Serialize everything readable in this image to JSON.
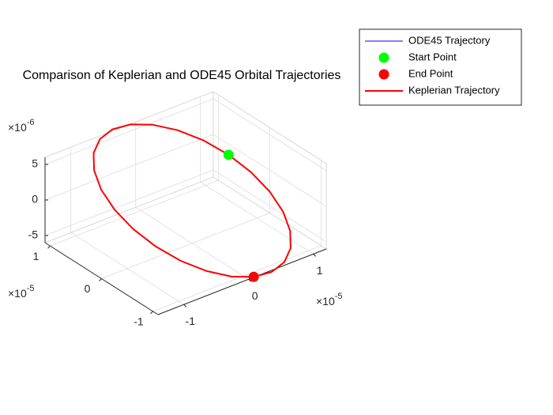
{
  "chart_data": {
    "type": "line3d",
    "title": "Comparison of Keplerian and ODE45 Orbital Trajectories",
    "xlim": [
      -1.4e-05,
      1.2e-05
    ],
    "ylim": [
      -1.1e-05,
      1.1e-05
    ],
    "zlim": [
      -6e-06,
      6e-06
    ],
    "xticks": [
      {
        "value": -1e-05,
        "label": "-1"
      },
      0,
      {
        "value": 1e-05,
        "label": "1"
      }
    ],
    "yticks": [
      {
        "value": -1e-05,
        "label": "-1"
      },
      0,
      {
        "value": 1e-05,
        "label": "1"
      }
    ],
    "zticks": [
      {
        "value": -5e-06,
        "label": "-5"
      },
      0,
      {
        "value": 5e-06,
        "label": "5"
      }
    ],
    "x_exponent_label": {
      "base": "×10",
      "power": "-5"
    },
    "y_exponent_label": {
      "base": "×10",
      "power": "-5"
    },
    "z_exponent_label": {
      "base": "×10",
      "power": "-6"
    },
    "grid": true,
    "legend_location": "northeast",
    "series": [
      {
        "name": "ODE45 Trajectory",
        "mode": "line",
        "color": "#0000ff",
        "line_width": 1,
        "x": [
          1.2e-05,
          1.159e-05,
          1.039e-05,
          8.49e-06,
          6e-06,
          3.11e-06,
          0,
          -3.11e-06,
          -6e-06,
          -8.49e-06,
          -1.039e-05,
          -1.159e-05,
          -1.2e-05,
          -1.159e-05,
          -1.039e-05,
          -8.49e-06,
          -6e-06,
          -3.11e-06,
          0,
          3.11e-06,
          6e-06,
          8.49e-06,
          1.039e-05,
          1.159e-05,
          1.2e-05
        ],
        "y": [
          0,
          3.11e-06,
          6e-06,
          8.49e-06,
          1.039e-05,
          1.159e-05,
          1.2e-05,
          1.159e-05,
          1.039e-05,
          8.49e-06,
          6e-06,
          3.11e-06,
          0,
          -3.11e-06,
          -6e-06,
          -8.49e-06,
          -1.039e-05,
          -1.159e-05,
          -1.2e-05,
          -1.159e-05,
          -1.039e-05,
          -8.49e-06,
          -6e-06,
          -3.11e-06,
          0
        ],
        "z": [
          -3e-06,
          -1.553e-06,
          0,
          1.553e-06,
          3e-06,
          4.243e-06,
          5.196e-06,
          5.796e-06,
          6e-06,
          5.796e-06,
          5.196e-06,
          4.243e-06,
          3e-06,
          1.553e-06,
          0,
          -1.553e-06,
          -3e-06,
          -4.243e-06,
          -5.196e-06,
          -5.796e-06,
          -6e-06,
          -5.796e-06,
          -5.196e-06,
          -4.243e-06,
          -3e-06
        ]
      },
      {
        "name": "Start Point",
        "mode": "marker",
        "color": "#00ff00",
        "x": [
          1.039e-05
        ],
        "y": [
          6e-06
        ],
        "z": [
          0
        ]
      },
      {
        "name": "End Point",
        "mode": "marker",
        "color": "#ff0000",
        "x": [
          0
        ],
        "y": [
          -1.2e-05
        ],
        "z": [
          -5.196e-06
        ]
      },
      {
        "name": "Keplerian Trajectory",
        "mode": "line",
        "color": "#ff0000",
        "line_width": 2,
        "x": [
          1.2e-05,
          1.159e-05,
          1.039e-05,
          8.49e-06,
          6e-06,
          3.11e-06,
          0,
          -3.11e-06,
          -6e-06,
          -8.49e-06,
          -1.039e-05,
          -1.159e-05,
          -1.2e-05,
          -1.159e-05,
          -1.039e-05,
          -8.49e-06,
          -6e-06,
          -3.11e-06,
          0,
          3.11e-06,
          6e-06,
          8.49e-06,
          1.039e-05,
          1.159e-05,
          1.2e-05
        ],
        "y": [
          0,
          3.11e-06,
          6e-06,
          8.49e-06,
          1.039e-05,
          1.159e-05,
          1.2e-05,
          1.159e-05,
          1.039e-05,
          8.49e-06,
          6e-06,
          3.11e-06,
          0,
          -3.11e-06,
          -6e-06,
          -8.49e-06,
          -1.039e-05,
          -1.159e-05,
          -1.2e-05,
          -1.159e-05,
          -1.039e-05,
          -8.49e-06,
          -6e-06,
          -3.11e-06,
          0
        ],
        "z": [
          -3e-06,
          -1.553e-06,
          0,
          1.553e-06,
          3e-06,
          4.243e-06,
          5.196e-06,
          5.796e-06,
          6e-06,
          5.796e-06,
          5.196e-06,
          4.243e-06,
          3e-06,
          1.553e-06,
          0,
          -1.553e-06,
          -3e-06,
          -4.243e-06,
          -5.196e-06,
          -5.796e-06,
          -6e-06,
          -5.796e-06,
          -5.196e-06,
          -4.243e-06,
          -3e-06
        ]
      }
    ]
  }
}
